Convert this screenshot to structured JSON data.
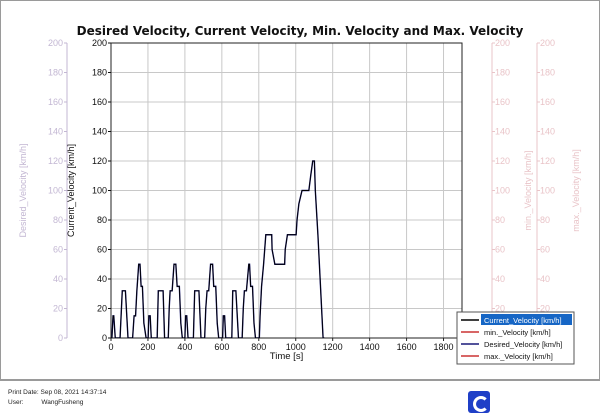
{
  "chart_data": {
    "type": "line",
    "title": "Desired Velocity, Current Velocity, Min. Velocity and Max. Velocity",
    "xlabel": "Time [s]",
    "xlim": [
      0,
      1900
    ],
    "x_ticks": [
      0,
      200,
      400,
      600,
      800,
      1000,
      1200,
      1400,
      1600,
      1800
    ],
    "ylim": [
      0,
      200
    ],
    "y_ticks": [
      0,
      20,
      40,
      60,
      80,
      100,
      120,
      140,
      160,
      180,
      200
    ],
    "axes": [
      {
        "label": "Desired_Velocity [km/h]",
        "side": "left",
        "color": "#c3b7d3"
      },
      {
        "label": "Current_Velocity [km/h]",
        "side": "left",
        "color": "#111111"
      },
      {
        "label": "min._Velocity [km/h]",
        "side": "right",
        "color": "#e9c4c8"
      },
      {
        "label": "max._Velocity [km/h]",
        "side": "right",
        "color": "#e9c4c8"
      }
    ],
    "grid": true,
    "legend_position": "bottom-right",
    "legend": [
      {
        "name": "Current_Velocity [km/h]",
        "color": "#000000",
        "selected": true
      },
      {
        "name": "min._Velocity [km/h]",
        "color": "#cc3333"
      },
      {
        "name": "Desired_Velocity [km/h]",
        "color": "#1a1a7a"
      },
      {
        "name": "max._Velocity [km/h]",
        "color": "#cc3333"
      }
    ],
    "series": [
      {
        "name": "Desired_Velocity [km/h]",
        "color": "#1a1a7a",
        "points": [
          [
            0,
            0
          ],
          [
            5,
            0
          ],
          [
            11,
            15
          ],
          [
            15,
            15
          ],
          [
            23,
            0
          ],
          [
            49,
            0
          ],
          [
            61,
            32
          ],
          [
            78,
            32
          ],
          [
            92,
            0
          ],
          [
            117,
            0
          ],
          [
            125,
            15
          ],
          [
            133,
            15
          ],
          [
            140,
            32
          ],
          [
            150,
            50
          ],
          [
            157,
            50
          ],
          [
            163,
            35
          ],
          [
            170,
            35
          ],
          [
            178,
            10
          ],
          [
            190,
            0
          ],
          [
            201,
            0
          ],
          [
            205,
            15
          ],
          [
            212,
            15
          ],
          [
            218,
            0
          ],
          [
            250,
            0
          ],
          [
            256,
            32
          ],
          [
            282,
            32
          ],
          [
            290,
            0
          ],
          [
            310,
            0
          ],
          [
            315,
            20
          ],
          [
            320,
            32
          ],
          [
            331,
            32
          ],
          [
            341,
            50
          ],
          [
            351,
            50
          ],
          [
            358,
            35
          ],
          [
            370,
            35
          ],
          [
            378,
            10
          ],
          [
            386,
            0
          ],
          [
            400,
            0
          ],
          [
            404,
            15
          ],
          [
            410,
            15
          ],
          [
            417,
            0
          ],
          [
            446,
            0
          ],
          [
            453,
            32
          ],
          [
            476,
            32
          ],
          [
            487,
            0
          ],
          [
            507,
            0
          ],
          [
            513,
            20
          ],
          [
            520,
            32
          ],
          [
            529,
            32
          ],
          [
            539,
            50
          ],
          [
            550,
            50
          ],
          [
            556,
            35
          ],
          [
            567,
            35
          ],
          [
            575,
            10
          ],
          [
            583,
            0
          ],
          [
            604,
            0
          ],
          [
            608,
            15
          ],
          [
            615,
            15
          ],
          [
            621,
            0
          ],
          [
            654,
            0
          ],
          [
            659,
            32
          ],
          [
            676,
            32
          ],
          [
            690,
            0
          ],
          [
            710,
            0
          ],
          [
            716,
            20
          ],
          [
            722,
            32
          ],
          [
            733,
            32
          ],
          [
            746,
            50
          ],
          [
            750,
            50
          ],
          [
            756,
            35
          ],
          [
            766,
            35
          ],
          [
            774,
            10
          ],
          [
            782,
            0
          ],
          [
            803,
            0
          ],
          [
            807,
            15
          ],
          [
            815,
            35
          ],
          [
            826,
            50
          ],
          [
            838,
            70
          ],
          [
            870,
            70
          ],
          [
            872,
            60
          ],
          [
            887,
            50
          ],
          [
            940,
            50
          ],
          [
            943,
            60
          ],
          [
            955,
            70
          ],
          [
            1002,
            70
          ],
          [
            1007,
            80
          ],
          [
            1017,
            91
          ],
          [
            1034,
            100
          ],
          [
            1071,
            100
          ],
          [
            1081,
            110
          ],
          [
            1092,
            120
          ],
          [
            1101,
            120
          ],
          [
            1106,
            100
          ],
          [
            1120,
            70
          ],
          [
            1148,
            0
          ],
          [
            1155,
            0
          ]
        ]
      },
      {
        "name": "Current_Velocity [km/h]",
        "color": "#000000",
        "points": [
          [
            0,
            0
          ],
          [
            5,
            0
          ],
          [
            11,
            15
          ],
          [
            15,
            15
          ],
          [
            23,
            0
          ],
          [
            49,
            0
          ],
          [
            61,
            32
          ],
          [
            78,
            32
          ],
          [
            92,
            0
          ],
          [
            117,
            0
          ],
          [
            125,
            15
          ],
          [
            133,
            15
          ],
          [
            140,
            32
          ],
          [
            150,
            50
          ],
          [
            157,
            50
          ],
          [
            163,
            35
          ],
          [
            170,
            35
          ],
          [
            178,
            10
          ],
          [
            190,
            0
          ],
          [
            201,
            0
          ],
          [
            205,
            15
          ],
          [
            212,
            15
          ],
          [
            218,
            0
          ],
          [
            250,
            0
          ],
          [
            256,
            32
          ],
          [
            282,
            32
          ],
          [
            290,
            0
          ],
          [
            310,
            0
          ],
          [
            315,
            20
          ],
          [
            320,
            32
          ],
          [
            331,
            32
          ],
          [
            341,
            50
          ],
          [
            351,
            50
          ],
          [
            358,
            35
          ],
          [
            370,
            35
          ],
          [
            378,
            10
          ],
          [
            386,
            0
          ],
          [
            400,
            0
          ],
          [
            404,
            15
          ],
          [
            410,
            15
          ],
          [
            417,
            0
          ],
          [
            446,
            0
          ],
          [
            453,
            32
          ],
          [
            476,
            32
          ],
          [
            487,
            0
          ],
          [
            507,
            0
          ],
          [
            513,
            20
          ],
          [
            520,
            32
          ],
          [
            529,
            32
          ],
          [
            539,
            50
          ],
          [
            550,
            50
          ],
          [
            556,
            35
          ],
          [
            567,
            35
          ],
          [
            575,
            10
          ],
          [
            583,
            0
          ],
          [
            604,
            0
          ],
          [
            608,
            15
          ],
          [
            615,
            15
          ],
          [
            621,
            0
          ],
          [
            654,
            0
          ],
          [
            659,
            32
          ],
          [
            676,
            32
          ],
          [
            690,
            0
          ],
          [
            710,
            0
          ],
          [
            716,
            20
          ],
          [
            722,
            32
          ],
          [
            733,
            32
          ],
          [
            746,
            50
          ],
          [
            750,
            50
          ],
          [
            756,
            35
          ],
          [
            766,
            35
          ],
          [
            774,
            10
          ],
          [
            782,
            0
          ],
          [
            803,
            0
          ],
          [
            807,
            15
          ],
          [
            815,
            35
          ],
          [
            826,
            50
          ],
          [
            838,
            70
          ],
          [
            870,
            70
          ],
          [
            872,
            60
          ],
          [
            887,
            50
          ],
          [
            940,
            50
          ],
          [
            943,
            60
          ],
          [
            955,
            70
          ],
          [
            1002,
            70
          ],
          [
            1007,
            80
          ],
          [
            1017,
            91
          ],
          [
            1034,
            100
          ],
          [
            1071,
            100
          ],
          [
            1081,
            110
          ],
          [
            1092,
            120
          ],
          [
            1101,
            120
          ],
          [
            1106,
            100
          ],
          [
            1120,
            70
          ],
          [
            1148,
            0
          ],
          [
            1155,
            0
          ]
        ]
      }
    ]
  },
  "footer": {
    "print_label": "Print Date:",
    "print_date": "Sep 08, 2021 14:37:14",
    "user_label": "User:",
    "user_value": "WangFusheng"
  }
}
